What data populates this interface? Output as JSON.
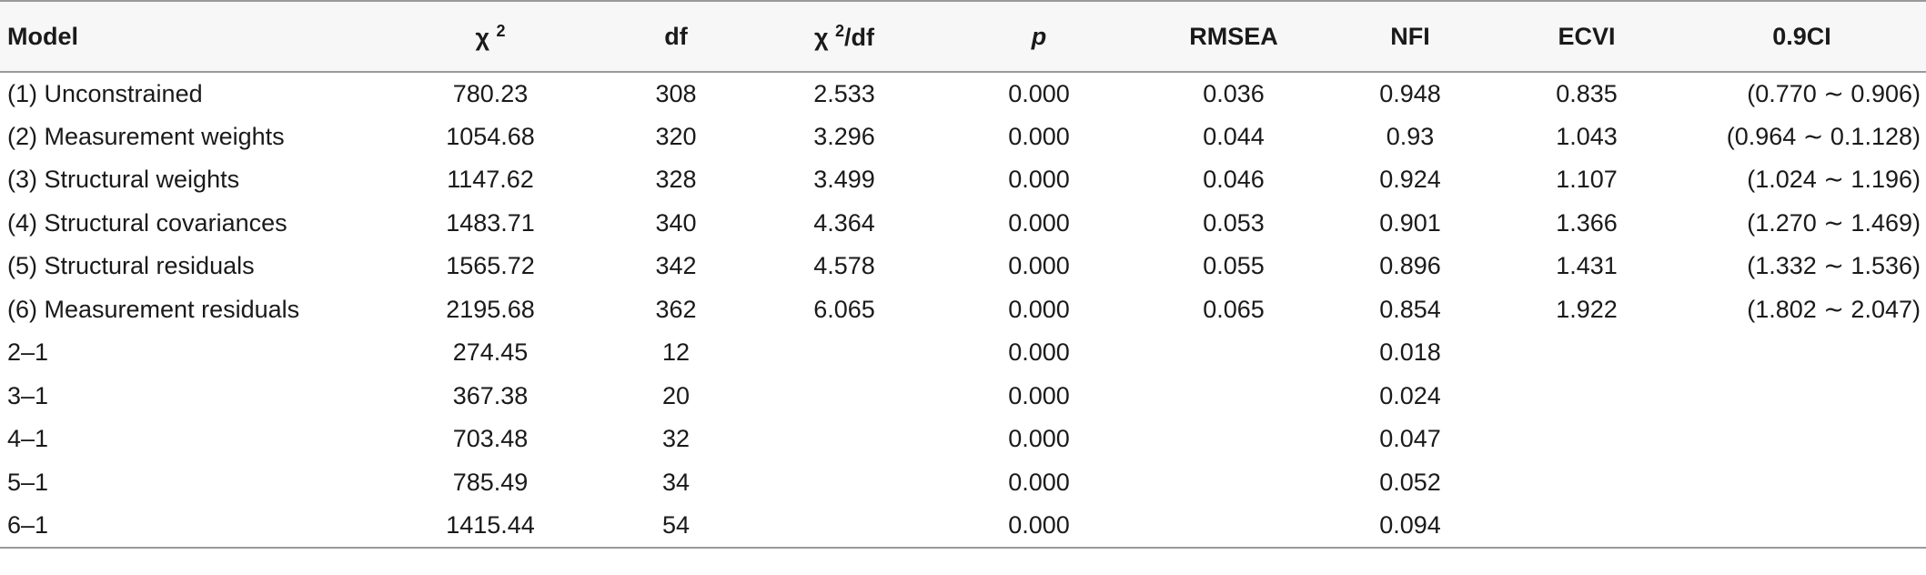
{
  "table": {
    "headers": {
      "model": "Model",
      "chi_symbol": "χ",
      "chi_sup": "2",
      "df": "df",
      "chidf_symbol": "χ",
      "chidf_sup": "2",
      "chidf_suffix": "/df",
      "p": "p",
      "rmsea": "RMSEA",
      "nfi": "NFI",
      "ecvi": "ECVI",
      "ci": "0.9CI"
    },
    "rows": [
      {
        "model": "(1) Unconstrained",
        "chi2": "780.23",
        "df": "308",
        "chi2df": "2.533",
        "p": "0.000",
        "rmsea": "0.036",
        "nfi": "0.948",
        "ecvi": "0.835",
        "ci": "(0.770 ∼ 0.906)"
      },
      {
        "model": "(2) Measurement weights",
        "chi2": "1054.68",
        "df": "320",
        "chi2df": "3.296",
        "p": "0.000",
        "rmsea": "0.044",
        "nfi": "0.93",
        "ecvi": "1.043",
        "ci": "(0.964 ∼ 0.1.128)"
      },
      {
        "model": "(3) Structural weights",
        "chi2": "1147.62",
        "df": "328",
        "chi2df": "3.499",
        "p": "0.000",
        "rmsea": "0.046",
        "nfi": "0.924",
        "ecvi": "1.107",
        "ci": "(1.024 ∼ 1.196)"
      },
      {
        "model": "(4) Structural covariances",
        "chi2": "1483.71",
        "df": "340",
        "chi2df": "4.364",
        "p": "0.000",
        "rmsea": "0.053",
        "nfi": "0.901",
        "ecvi": "1.366",
        "ci": "(1.270 ∼ 1.469)"
      },
      {
        "model": "(5) Structural residuals",
        "chi2": "1565.72",
        "df": "342",
        "chi2df": "4.578",
        "p": "0.000",
        "rmsea": "0.055",
        "nfi": "0.896",
        "ecvi": "1.431",
        "ci": "(1.332 ∼ 1.536)"
      },
      {
        "model": "(6) Measurement residuals",
        "chi2": "2195.68",
        "df": "362",
        "chi2df": "6.065",
        "p": "0.000",
        "rmsea": "0.065",
        "nfi": "0.854",
        "ecvi": "1.922",
        "ci": "(1.802 ∼ 2.047)"
      },
      {
        "model": "2–1",
        "chi2": "274.45",
        "df": "12",
        "chi2df": "",
        "p": "0.000",
        "rmsea": "",
        "nfi": "0.018",
        "ecvi": "",
        "ci": ""
      },
      {
        "model": "3–1",
        "chi2": "367.38",
        "df": "20",
        "chi2df": "",
        "p": "0.000",
        "rmsea": "",
        "nfi": "0.024",
        "ecvi": "",
        "ci": ""
      },
      {
        "model": "4–1",
        "chi2": "703.48",
        "df": "32",
        "chi2df": "",
        "p": "0.000",
        "rmsea": "",
        "nfi": "0.047",
        "ecvi": "",
        "ci": ""
      },
      {
        "model": "5–1",
        "chi2": "785.49",
        "df": "34",
        "chi2df": "",
        "p": "0.000",
        "rmsea": "",
        "nfi": "0.052",
        "ecvi": "",
        "ci": ""
      },
      {
        "model": "6–1",
        "chi2": "1415.44",
        "df": "54",
        "chi2df": "",
        "p": "0.000",
        "rmsea": "",
        "nfi": "0.094",
        "ecvi": "",
        "ci": ""
      }
    ]
  }
}
